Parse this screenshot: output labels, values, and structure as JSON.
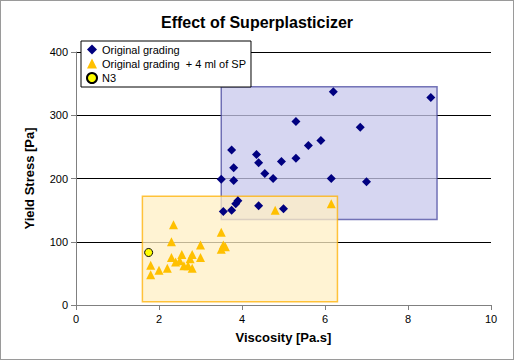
{
  "chart_data": {
    "type": "scatter",
    "title": "Effect of Superplasticizer",
    "x_label": "Viscosity [Pa.s]",
    "y_label": "Yield Stress [Pa]",
    "xlim": [
      0,
      10
    ],
    "xticks": [
      0,
      2,
      4,
      6,
      8,
      10
    ],
    "ylim": [
      0,
      400
    ],
    "yticks": [
      0,
      100,
      200,
      300,
      400
    ],
    "grid": "y",
    "legend": "top-left",
    "series": [
      {
        "name": "Original grading",
        "color": "#000080",
        "marker": "diamond",
        "x": [
          8.55,
          6.2,
          5.3,
          6.85,
          5.9,
          5.6,
          5.3,
          4.95,
          4.35,
          4.4,
          3.75,
          3.8,
          4.55,
          4.75,
          3.5,
          3.8,
          6.15,
          7.0,
          3.9,
          3.85,
          4.4,
          5.0,
          3.75,
          3.55
        ],
        "values": [
          328,
          337,
          290,
          281,
          260,
          252,
          232,
          227,
          238,
          225,
          245,
          217,
          208,
          200,
          199,
          197,
          200,
          195,
          165,
          160,
          157,
          152,
          150,
          148
        ]
      },
      {
        "name": "Original grading  + 4 ml of SP",
        "color": "#FFC000",
        "marker": "triangle",
        "x": [
          1.8,
          1.8,
          2.0,
          2.2,
          2.3,
          2.35,
          2.3,
          2.4,
          2.5,
          2.55,
          2.7,
          2.75,
          2.8,
          2.8,
          3.0,
          3.0,
          2.6,
          3.5,
          3.5,
          3.55,
          3.6,
          4.8,
          6.15
        ],
        "values": [
          63,
          48,
          55,
          58,
          100,
          127,
          75,
          68,
          70,
          80,
          62,
          73,
          58,
          80,
          95,
          75,
          62,
          115,
          88,
          95,
          92,
          150,
          160
        ]
      },
      {
        "name": "N3",
        "color": "#FFFF00",
        "marker": "circle",
        "x": [
          1.75
        ],
        "values": [
          83
        ]
      }
    ],
    "regions": [
      {
        "series": "Original grading",
        "x": [
          3.5,
          8.7
        ],
        "y": [
          135,
          345
        ],
        "color": "#C8C8EC"
      },
      {
        "series": "Original grading  + 4 ml of SP",
        "x": [
          1.6,
          6.3
        ],
        "y": [
          5,
          172
        ],
        "color": "#FFEFC4"
      }
    ]
  }
}
